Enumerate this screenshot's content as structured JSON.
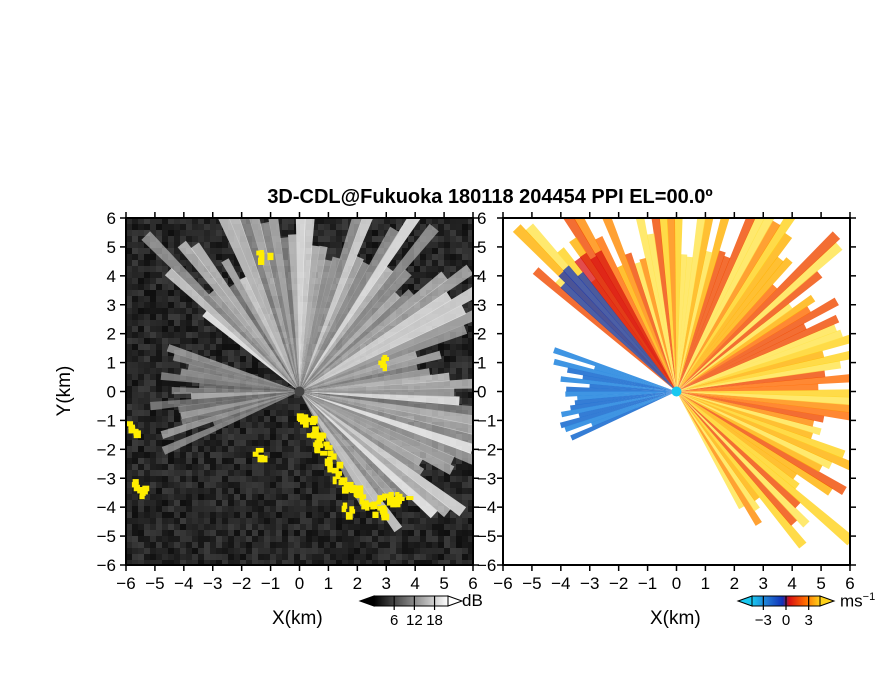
{
  "title": "3D-CDL@Fukuoka 180118 204454 PPI EL=00.0º",
  "chart_data": [
    {
      "id": "intensity",
      "type": "heatmap",
      "title": "",
      "xlabel": "X(km)",
      "ylabel": "Y(km)",
      "xlim": [
        -6,
        6
      ],
      "ylim": [
        -6,
        6
      ],
      "xticks": [
        "-6",
        "-5",
        "-4",
        "-3",
        "-2",
        "-1",
        "0",
        "1",
        "2",
        "3",
        "4",
        "5",
        "6"
      ],
      "yticks": [
        "6",
        "5",
        "4",
        "3",
        "2",
        "1",
        "0",
        "-1",
        "-2",
        "-3",
        "-4",
        "-5",
        "-6"
      ],
      "background": "#1e1e1e",
      "overlay_color": "#ffee00",
      "colorbar": {
        "unit": "dB",
        "ticks": [
          6,
          12,
          18
        ],
        "range": [
          0,
          22
        ],
        "colors": [
          "#000000",
          "#ffffff"
        ]
      }
    },
    {
      "id": "velocity",
      "type": "heatmap",
      "title": "",
      "xlabel": "X(km)",
      "ylabel": "",
      "xlim": [
        -6,
        6
      ],
      "ylim": [
        -6,
        6
      ],
      "xticks": [
        "-6",
        "-5",
        "-4",
        "-3",
        "-2",
        "-1",
        "0",
        "1",
        "2",
        "3",
        "4",
        "5",
        "6"
      ],
      "yticks": [
        "6",
        "5",
        "4",
        "3",
        "2",
        "1",
        "0",
        "-1",
        "-2",
        "-3",
        "-4",
        "-5",
        "-6"
      ],
      "background": "#ffffff",
      "colorbar": {
        "unit": "ms",
        "unit_exponent": "−1",
        "ticks": [
          -3,
          0,
          3
        ],
        "range": [
          -4.5,
          4.5
        ],
        "colors": [
          "#19c8f0",
          "#1f6fd0",
          "#1030b8",
          "#d81010",
          "#ff6a00",
          "#ffd21a"
        ]
      }
    }
  ]
}
